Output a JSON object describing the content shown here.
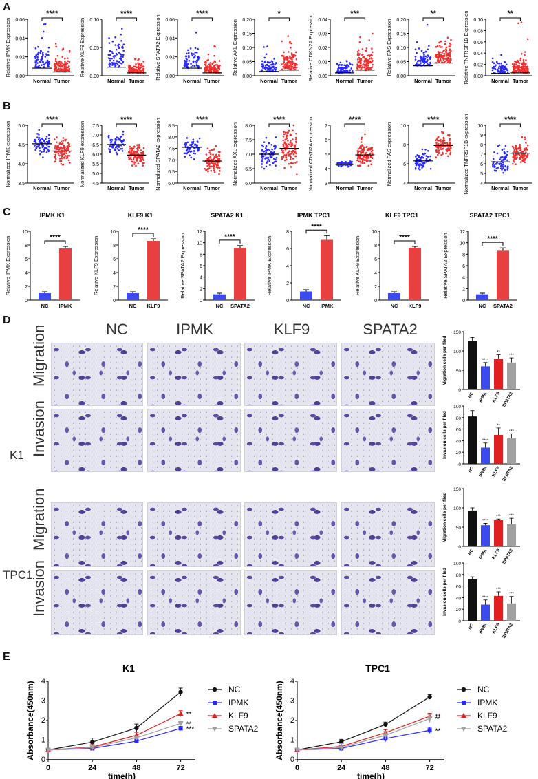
{
  "panels": {
    "A": "A",
    "B": "B",
    "C": "C",
    "D": "D",
    "E": "E"
  },
  "colors": {
    "normal": "#2828ff",
    "tumor": "#f03030",
    "nc_bar": "#3a4aee",
    "target_bar": "#e84040",
    "black": "#111111",
    "red": "#e02020",
    "gray": "#a0a0a0"
  },
  "chart_data": [
    {
      "id": "A1",
      "type": "scatter",
      "ylabel": "Relative IPMK Expression",
      "categories": [
        "Normal",
        "Tumor"
      ],
      "ylim": [
        0,
        0.06
      ],
      "yticks": [
        "0.00",
        "0.02",
        "0.04",
        "0.06"
      ],
      "yticks_v": [
        0,
        0.02,
        0.04,
        0.06
      ],
      "medians": [
        0.008,
        0.004
      ],
      "spread": [
        0.012,
        0.006
      ],
      "max": [
        0.059,
        0.036
      ],
      "sig": "****"
    },
    {
      "id": "A2",
      "type": "scatter",
      "ylabel": "Relative KLF9 Expression",
      "categories": [
        "Normal",
        "Tumor"
      ],
      "ylim": [
        0,
        0.1
      ],
      "yticks": [
        "0.00",
        "0.05",
        "0.10"
      ],
      "yticks_v": [
        0,
        0.05,
        0.1
      ],
      "medians": [
        0.015,
        0.005
      ],
      "spread": [
        0.022,
        0.009
      ],
      "max": [
        0.097,
        0.045
      ],
      "sig": "****"
    },
    {
      "id": "A3",
      "type": "scatter",
      "ylabel": "Relative SPATA2 Expression",
      "categories": [
        "Normal",
        "Tumor"
      ],
      "ylim": [
        0,
        0.06
      ],
      "yticks": [
        "0.00",
        "0.02",
        "0.04",
        "0.06"
      ],
      "yticks_v": [
        0,
        0.02,
        0.04,
        0.06
      ],
      "medians": [
        0.008,
        0.003
      ],
      "spread": [
        0.01,
        0.005
      ],
      "max": [
        0.053,
        0.035
      ],
      "sig": "****"
    },
    {
      "id": "A4",
      "type": "scatter",
      "ylabel": "Relative AXL Expression",
      "categories": [
        "Normal",
        "Tumor"
      ],
      "ylim": [
        0,
        0.2
      ],
      "yticks": [
        "0.00",
        "0.05",
        "0.10",
        "0.15",
        "0.20"
      ],
      "yticks_v": [
        0,
        0.05,
        0.1,
        0.15,
        0.2
      ],
      "medians": [
        0.015,
        0.02
      ],
      "spread": [
        0.02,
        0.035
      ],
      "max": [
        0.12,
        0.17
      ],
      "sig": "*"
    },
    {
      "id": "A5",
      "type": "scatter",
      "ylabel": "Relative CDKN2A Expression",
      "categories": [
        "Normal",
        "Tumor"
      ],
      "ylim": [
        0,
        0.04
      ],
      "yticks": [
        "0.00",
        "0.01",
        "0.02",
        "0.03",
        "0.04"
      ],
      "yticks_v": [
        0,
        0.01,
        0.02,
        0.03,
        0.04
      ],
      "medians": [
        0.002,
        0.004
      ],
      "spread": [
        0.004,
        0.007
      ],
      "max": [
        0.013,
        0.03
      ],
      "sig": "***"
    },
    {
      "id": "A6",
      "type": "scatter",
      "ylabel": "Relative FAS Expression",
      "categories": [
        "Normal",
        "Tumor"
      ],
      "ylim": [
        0,
        0.2
      ],
      "yticks": [
        "0.00",
        "0.05",
        "0.10",
        "0.15",
        "0.20"
      ],
      "yticks_v": [
        0,
        0.05,
        0.1,
        0.15,
        0.2
      ],
      "medians": [
        0.035,
        0.045
      ],
      "spread": [
        0.025,
        0.035
      ],
      "max": [
        0.19,
        0.16
      ],
      "sig": "**"
    },
    {
      "id": "A7",
      "type": "scatter",
      "ylabel": "Relative TNFRSF1B Expression",
      "categories": [
        "Normal",
        "Tumor"
      ],
      "ylim": [
        0,
        0.1
      ],
      "yticks": [
        "0.00",
        "0.02",
        "0.04",
        "0.06",
        "0.08",
        "0.10"
      ],
      "yticks_v": [
        0,
        0.02,
        0.04,
        0.06,
        0.08,
        0.1
      ],
      "medians": [
        0.004,
        0.005
      ],
      "spread": [
        0.01,
        0.012
      ],
      "max": [
        0.07,
        0.095
      ],
      "sig": "**"
    },
    {
      "id": "B1",
      "type": "scatter",
      "ylabel": "Normalized IPMK expression",
      "categories": [
        "Normal",
        "Tumor"
      ],
      "ylim": [
        3.5,
        5.0
      ],
      "yticks": [
        "3.5",
        "4.0",
        "4.5",
        "5.0"
      ],
      "yticks_v": [
        3.5,
        4,
        4.5,
        5
      ],
      "medians": [
        4.52,
        4.33
      ],
      "spread": [
        0.12,
        0.14
      ],
      "max": [
        4.9,
        4.75
      ],
      "min": [
        4.1,
        3.65
      ],
      "sig": "****"
    },
    {
      "id": "B2",
      "type": "scatter",
      "ylabel": "Normalized KLF9 expression",
      "categories": [
        "Normal",
        "Tumor"
      ],
      "ylim": [
        4.5,
        7.5
      ],
      "yticks": [
        "4.5",
        "5.0",
        "5.5",
        "6.0",
        "6.5",
        "7.0",
        "7.5"
      ],
      "yticks_v": [
        4.5,
        5,
        5.5,
        6,
        6.5,
        7,
        7.5
      ],
      "medians": [
        6.5,
        5.95
      ],
      "spread": [
        0.25,
        0.25
      ],
      "max": [
        7.2,
        6.7
      ],
      "min": [
        5.8,
        5.0
      ],
      "sig": "****"
    },
    {
      "id": "B3",
      "type": "scatter",
      "ylabel": "Normalized SPATA2 expression",
      "categories": [
        "Normal",
        "Tumor"
      ],
      "ylim": [
        6.0,
        8.5
      ],
      "yticks": [
        "6.0",
        "6.5",
        "7.0",
        "7.5",
        "8.0",
        "8.5"
      ],
      "yticks_v": [
        6,
        6.5,
        7,
        7.5,
        8,
        8.5
      ],
      "medians": [
        7.55,
        6.95
      ],
      "spread": [
        0.18,
        0.22
      ],
      "max": [
        8.2,
        7.7
      ],
      "min": [
        6.8,
        6.2
      ],
      "sig": "****"
    },
    {
      "id": "B4",
      "type": "scatter",
      "ylabel": "Normalized AXL expression",
      "categories": [
        "Normal",
        "Tumor"
      ],
      "ylim": [
        6.0,
        8.0
      ],
      "yticks": [
        "6.0",
        "6.5",
        "7.0",
        "7.5",
        "8.0"
      ],
      "yticks_v": [
        6,
        6.5,
        7,
        7.5,
        8
      ],
      "medians": [
        7.0,
        7.2
      ],
      "spread": [
        0.25,
        0.3
      ],
      "max": [
        7.8,
        8.0
      ],
      "min": [
        6.3,
        6.1
      ],
      "sig": "****"
    },
    {
      "id": "B5",
      "type": "scatter",
      "ylabel": "Normalized CDKN2A expression",
      "categories": [
        "Normal",
        "Tumor"
      ],
      "ylim": [
        3,
        7
      ],
      "yticks": [
        "3",
        "4",
        "5",
        "6",
        "7"
      ],
      "yticks_v": [
        3,
        4,
        5,
        6,
        7
      ],
      "medians": [
        4.3,
        4.95
      ],
      "spread": [
        0.08,
        0.4
      ],
      "max": [
        4.6,
        6.5
      ],
      "min": [
        4.1,
        4.2
      ],
      "sig": "****"
    },
    {
      "id": "B6",
      "type": "scatter",
      "ylabel": "Normalized FAS expression",
      "categories": [
        "Normal",
        "Tumor"
      ],
      "ylim": [
        4,
        10
      ],
      "yticks": [
        "4",
        "6",
        "8",
        "10"
      ],
      "yticks_v": [
        4,
        6,
        8,
        10
      ],
      "medians": [
        6.3,
        7.9
      ],
      "spread": [
        0.4,
        0.5
      ],
      "max": [
        7.8,
        9.3
      ],
      "min": [
        5.3,
        6.5
      ],
      "sig": "****"
    },
    {
      "id": "B7",
      "type": "scatter",
      "ylabel": "Normalized TNFRSF1B expression",
      "categories": [
        "Normal",
        "Tumor"
      ],
      "ylim": [
        4,
        10
      ],
      "yticks": [
        "4",
        "5",
        "6",
        "7",
        "8",
        "9",
        "10"
      ],
      "yticks_v": [
        4,
        5,
        6,
        7,
        8,
        9,
        10
      ],
      "medians": [
        6.2,
        7.1
      ],
      "spread": [
        0.6,
        0.5
      ],
      "max": [
        9.0,
        8.8
      ],
      "min": [
        4.6,
        5.7
      ],
      "sig": "****"
    },
    {
      "id": "C1",
      "type": "bar",
      "title": "IPMK K1",
      "ylabel": "Relative IPMK Expression",
      "categories": [
        "NC",
        "IPMK"
      ],
      "values": [
        1.0,
        7.5
      ],
      "errors": [
        0.2,
        0.3
      ],
      "ylim": [
        0,
        10
      ],
      "yticks": [
        "0",
        "2",
        "4",
        "6",
        "8",
        "10"
      ],
      "yticks_v": [
        0,
        2,
        4,
        6,
        8,
        10
      ],
      "sig": "****"
    },
    {
      "id": "C2",
      "type": "bar",
      "title": "KLF9 K1",
      "ylabel": "Relative KLF9 Expression",
      "categories": [
        "NC",
        "KLF9"
      ],
      "values": [
        1.0,
        8.6
      ],
      "errors": [
        0.2,
        0.3
      ],
      "ylim": [
        0,
        10
      ],
      "yticks": [
        "0",
        "2",
        "4",
        "6",
        "8",
        "10"
      ],
      "yticks_v": [
        0,
        2,
        4,
        6,
        8,
        10
      ],
      "sig": "****"
    },
    {
      "id": "C3",
      "type": "bar",
      "title": "SPATA2 K1",
      "ylabel": "Relative SPATA2 Expression",
      "categories": [
        "NC",
        "SPATA2"
      ],
      "values": [
        1.0,
        9.1
      ],
      "errors": [
        0.2,
        0.4
      ],
      "ylim": [
        0,
        12
      ],
      "yticks": [
        "0",
        "2",
        "4",
        "6",
        "8",
        "10",
        "12"
      ],
      "yticks_v": [
        0,
        2,
        4,
        6,
        8,
        10,
        12
      ],
      "sig": "****"
    },
    {
      "id": "C4",
      "type": "bar",
      "title": "IPMK TPC1",
      "ylabel": "Relative IPMK Expression",
      "categories": [
        "NC",
        "IPMK"
      ],
      "values": [
        1.0,
        7.0
      ],
      "errors": [
        0.2,
        0.5
      ],
      "ylim": [
        0,
        8
      ],
      "yticks": [
        "0",
        "2",
        "4",
        "6",
        "8"
      ],
      "yticks_v": [
        0,
        2,
        4,
        6,
        8
      ],
      "sig": "****"
    },
    {
      "id": "C5",
      "type": "bar",
      "title": "KLF9 TPC1",
      "ylabel": "Relative KLF9 Expression",
      "categories": [
        "NC",
        "KLF9"
      ],
      "values": [
        1.0,
        7.6
      ],
      "errors": [
        0.2,
        0.2
      ],
      "ylim": [
        0,
        10
      ],
      "yticks": [
        "0",
        "2",
        "4",
        "6",
        "8",
        "10"
      ],
      "yticks_v": [
        0,
        2,
        4,
        6,
        8,
        10
      ],
      "sig": "****"
    },
    {
      "id": "C6",
      "type": "bar",
      "title": "SPATA2 TPC1",
      "ylabel": "Relative SPATA2 Expression",
      "categories": [
        "NC",
        "SPATA2"
      ],
      "values": [
        1.0,
        8.6
      ],
      "errors": [
        0.2,
        0.5
      ],
      "ylim": [
        0,
        12
      ],
      "yticks": [
        "0",
        "2",
        "4",
        "6",
        "8",
        "10",
        "12"
      ],
      "yticks_v": [
        0,
        2,
        4,
        6,
        8,
        10,
        12
      ],
      "sig": "****"
    },
    {
      "id": "D1",
      "type": "bar",
      "ylabel": "Migration cells per filed",
      "categories": [
        "NC",
        "IPMK",
        "KLF9",
        "SPATA2"
      ],
      "values": [
        125,
        60,
        80,
        70
      ],
      "errors": [
        10,
        10,
        10,
        12
      ],
      "ylim": [
        0,
        150
      ],
      "yticks": [
        "0",
        "50",
        "100",
        "150"
      ],
      "yticks_v": [
        0,
        50,
        100,
        150
      ],
      "sigs": [
        "",
        "****",
        "**",
        "***"
      ]
    },
    {
      "id": "D2",
      "type": "bar",
      "ylabel": "Invasion cells per filed",
      "categories": [
        "NC",
        "IPMK",
        "KLF9",
        "SPATA2"
      ],
      "values": [
        82,
        28,
        50,
        44
      ],
      "errors": [
        10,
        8,
        12,
        8
      ],
      "ylim": [
        0,
        100
      ],
      "yticks": [
        "0",
        "20",
        "40",
        "60",
        "80",
        "100"
      ],
      "yticks_v": [
        0,
        20,
        40,
        60,
        80,
        100
      ],
      "sigs": [
        "",
        "****",
        "**",
        "***"
      ]
    },
    {
      "id": "D3",
      "type": "bar",
      "ylabel": "Migration cells per filed",
      "categories": [
        "NC",
        "IPMK",
        "KLF9",
        "SPATA2"
      ],
      "values": [
        93,
        55,
        68,
        58
      ],
      "errors": [
        7,
        5,
        3,
        15
      ],
      "ylim": [
        0,
        150
      ],
      "yticks": [
        "0",
        "50",
        "100",
        "150"
      ],
      "yticks_v": [
        0,
        50,
        100,
        150
      ],
      "sigs": [
        "",
        "****",
        "***",
        "***"
      ]
    },
    {
      "id": "D4",
      "type": "bar",
      "ylabel": "Invasion cells per filed",
      "categories": [
        "NC",
        "IPMK",
        "KLF9",
        "SPATA2"
      ],
      "values": [
        72,
        28,
        43,
        30
      ],
      "errors": [
        4,
        8,
        7,
        12
      ],
      "ylim": [
        0,
        100
      ],
      "yticks": [
        "0",
        "20",
        "40",
        "60",
        "80",
        "100"
      ],
      "yticks_v": [
        0,
        20,
        40,
        60,
        80,
        100
      ],
      "sigs": [
        "",
        "****",
        "***",
        "***"
      ]
    },
    {
      "id": "E1",
      "type": "line",
      "title": "K1",
      "xlabel": "time(h)",
      "ylabel": "Absorbance(450nm)",
      "x": [
        0,
        24,
        48,
        72
      ],
      "xlim": [
        0,
        80
      ],
      "ylim": [
        0,
        4
      ],
      "xticks": [
        "0",
        "24",
        "48",
        "72"
      ],
      "xticks_v": [
        0,
        24,
        48,
        72
      ],
      "yticks": [
        "0",
        "1",
        "2",
        "3",
        "4"
      ],
      "yticks_v": [
        0,
        1,
        2,
        3,
        4
      ],
      "series": [
        {
          "name": "NC",
          "values": [
            0.5,
            0.9,
            1.62,
            3.45
          ],
          "err": 0.2,
          "marker": "circle",
          "color": "#111111",
          "sig": ""
        },
        {
          "name": "IPMK",
          "values": [
            0.5,
            0.58,
            0.95,
            1.6
          ],
          "err": 0.1,
          "marker": "square",
          "color": "#2828ff",
          "sig": "***"
        },
        {
          "name": "KLF9",
          "values": [
            0.5,
            0.65,
            1.25,
            2.35
          ],
          "err": 0.15,
          "marker": "triangle",
          "color": "#e02020",
          "sig": "**"
        },
        {
          "name": "SPATA2",
          "values": [
            0.5,
            0.62,
            1.12,
            1.85
          ],
          "err": 0.1,
          "marker": "tri-down",
          "color": "#a0a0a0",
          "sig": "**"
        }
      ]
    },
    {
      "id": "E2",
      "type": "line",
      "title": "TPC1",
      "xlabel": "time(h)",
      "ylabel": "Absorbance(450nm)",
      "x": [
        0,
        24,
        48,
        72
      ],
      "xlim": [
        0,
        80
      ],
      "ylim": [
        0,
        4
      ],
      "xticks": [
        "0",
        "24",
        "48",
        "72"
      ],
      "xticks_v": [
        0,
        24,
        48,
        72
      ],
      "yticks": [
        "0",
        "1",
        "2",
        "3",
        "4"
      ],
      "yticks_v": [
        0,
        1,
        2,
        3,
        4
      ],
      "series": [
        {
          "name": "NC",
          "values": [
            0.5,
            0.92,
            1.8,
            3.2
          ],
          "err": 0.12,
          "marker": "circle",
          "color": "#111111",
          "sig": ""
        },
        {
          "name": "IPMK",
          "values": [
            0.5,
            0.58,
            1.08,
            1.5
          ],
          "err": 0.15,
          "marker": "square",
          "color": "#2828ff",
          "sig": "**"
        },
        {
          "name": "KLF9",
          "values": [
            0.5,
            0.68,
            1.38,
            2.22
          ],
          "err": 0.15,
          "marker": "triangle",
          "color": "#e02020",
          "sig": "**"
        },
        {
          "name": "SPATA2",
          "values": [
            0.5,
            0.62,
            1.25,
            2.1
          ],
          "err": 0.2,
          "marker": "tri-down",
          "color": "#a0a0a0",
          "sig": "**"
        }
      ]
    }
  ],
  "microscopy": {
    "columns": [
      "NC",
      "IPMK",
      "KLF9",
      "SPATA2"
    ],
    "cell_lines": [
      "K1",
      "TPC1"
    ],
    "assays": [
      "Migration",
      "Invasion"
    ]
  }
}
